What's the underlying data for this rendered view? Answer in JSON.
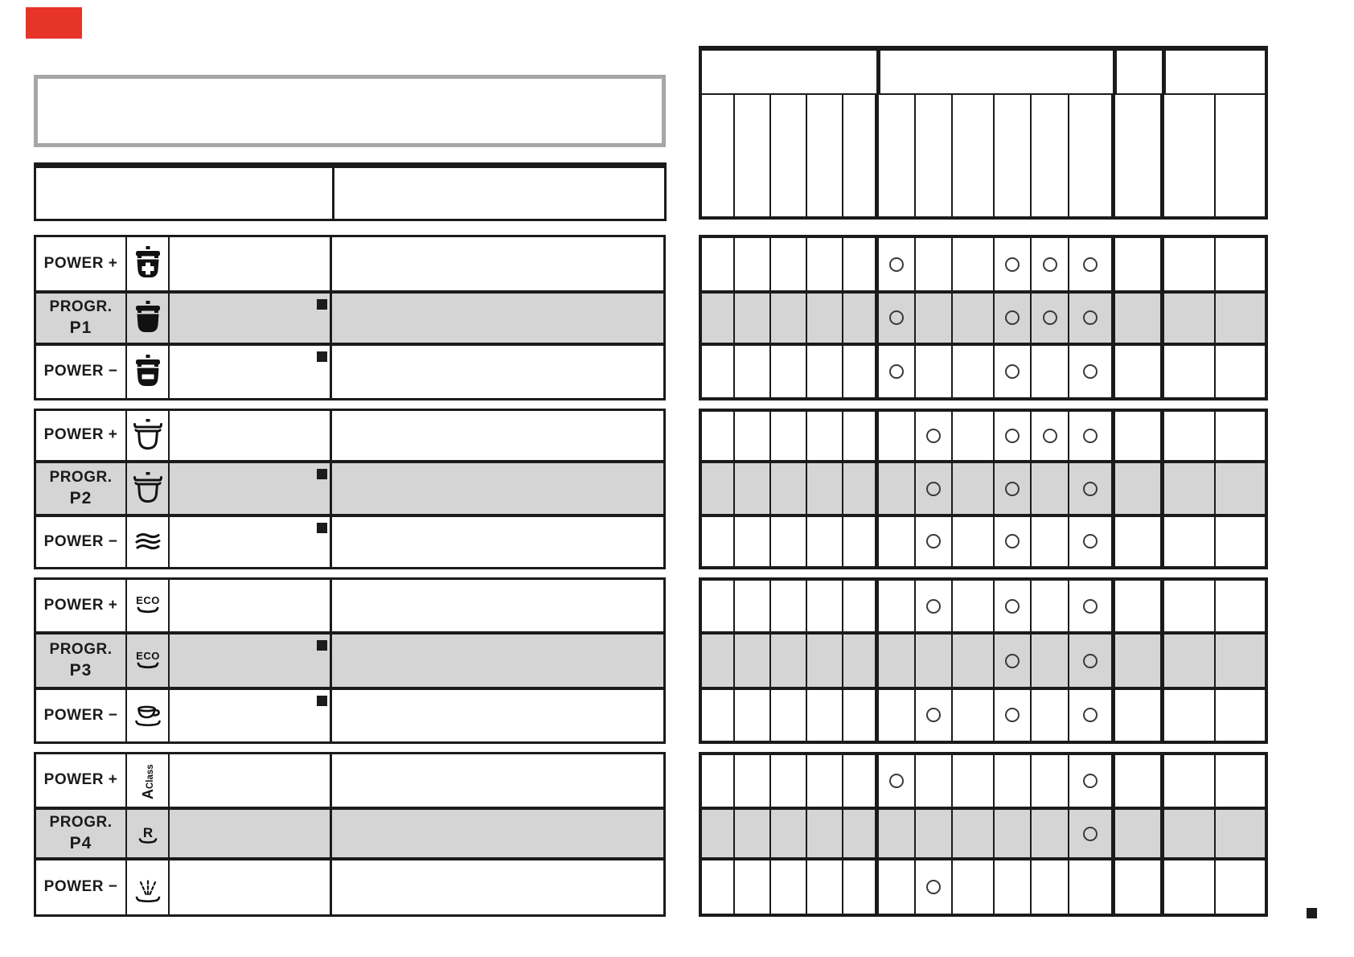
{
  "colors": {
    "accent_red": "#e63428",
    "table_black": "#1b1b1b",
    "highlight_row_gray": "#d5d5d5",
    "note_box_border_gray": "#a6a6a6"
  },
  "note_box": {
    "text": ""
  },
  "left_header_table": {
    "left_cell": "",
    "right_cell": ""
  },
  "labels": {
    "power_plus": "POWER +",
    "progr": "PROGR.",
    "power_minus": "POWER −"
  },
  "programs": [
    {
      "program": "P1",
      "rows": [
        {
          "label": "POWER +",
          "icon": "pot-power-plus-icon",
          "footnote_square": false,
          "highlighted": false
        },
        {
          "label": "PROGR.",
          "program_code": "P1",
          "icon": "pot-full-icon",
          "footnote_square": true,
          "highlighted": true
        },
        {
          "label": "POWER −",
          "icon": "pot-power-minus-icon",
          "footnote_square": true,
          "highlighted": false
        }
      ]
    },
    {
      "program": "P2",
      "rows": [
        {
          "label": "POWER +",
          "icon": "pan-outline-icon",
          "footnote_square": false,
          "highlighted": false
        },
        {
          "label": "PROGR.",
          "program_code": "P2",
          "icon": "pan-outline-icon",
          "footnote_square": true,
          "highlighted": true
        },
        {
          "label": "POWER −",
          "icon": "glass-waves-icon",
          "footnote_square": true,
          "highlighted": false
        }
      ]
    },
    {
      "program": "P3",
      "rows": [
        {
          "label": "POWER +",
          "icon": "eco-icon",
          "footnote_square": false,
          "highlighted": false
        },
        {
          "label": "PROGR.",
          "program_code": "P3",
          "icon": "eco-icon",
          "footnote_square": true,
          "highlighted": true
        },
        {
          "label": "POWER −",
          "icon": "cup-saucer-icon",
          "footnote_square": true,
          "highlighted": false
        }
      ]
    },
    {
      "program": "P4",
      "rows": [
        {
          "label": "POWER +",
          "icon": "a-class-icon",
          "footnote_square": false,
          "highlighted": false
        },
        {
          "label": "PROGR.",
          "program_code": "P4",
          "icon": "rapid-r-icon",
          "footnote_square": false,
          "highlighted": true
        },
        {
          "label": "POWER −",
          "icon": "prewash-spray-icon",
          "footnote_square": false,
          "highlighted": false
        }
      ]
    }
  ],
  "right_grid": {
    "columns": 14,
    "header_groups": 4,
    "groups": [
      {
        "rows": [
          {
            "dots": [
              5,
              8,
              9,
              10
            ],
            "highlighted": false
          },
          {
            "dots": [
              5,
              8,
              9,
              10
            ],
            "highlighted": true
          },
          {
            "dots": [
              5,
              8,
              10
            ],
            "highlighted": false
          }
        ]
      },
      {
        "rows": [
          {
            "dots": [
              6,
              8,
              9,
              10
            ],
            "highlighted": false
          },
          {
            "dots": [
              6,
              8,
              10
            ],
            "highlighted": true
          },
          {
            "dots": [
              6,
              8,
              10
            ],
            "highlighted": false
          }
        ]
      },
      {
        "rows": [
          {
            "dots": [
              6,
              8,
              10
            ],
            "highlighted": false
          },
          {
            "dots": [
              8,
              10
            ],
            "highlighted": true
          },
          {
            "dots": [
              6,
              8,
              10
            ],
            "highlighted": false
          }
        ]
      },
      {
        "rows": [
          {
            "dots": [
              5,
              10
            ],
            "highlighted": false
          },
          {
            "dots": [
              10
            ],
            "highlighted": true
          },
          {
            "dots": [
              6
            ],
            "highlighted": false
          }
        ]
      }
    ]
  },
  "page_corner_marker": "■"
}
